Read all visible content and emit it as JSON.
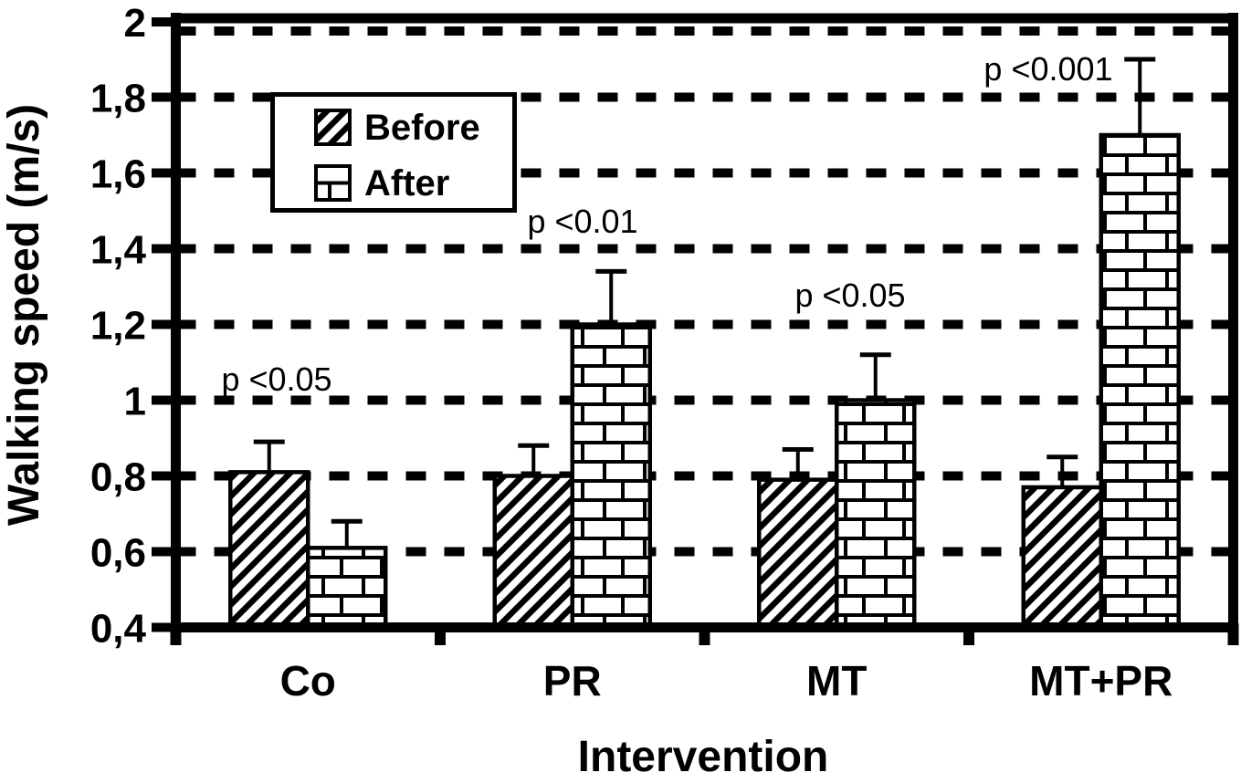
{
  "chart_data": {
    "type": "bar",
    "title": "",
    "xlabel": "Intervention",
    "ylabel": "Walking speed (m/s)",
    "categories": [
      "Co",
      "PR",
      "MT",
      "MT+PR"
    ],
    "series": [
      {
        "name": "Before",
        "pattern": "diagonal-hatch",
        "values": [
          0.81,
          0.8,
          0.79,
          0.77
        ],
        "error_plus": [
          0.08,
          0.08,
          0.08,
          0.08
        ]
      },
      {
        "name": "After",
        "pattern": "brick",
        "values": [
          0.61,
          1.2,
          1.0,
          1.7
        ],
        "error_plus": [
          0.07,
          0.14,
          0.12,
          0.2
        ]
      }
    ],
    "annotations": [
      {
        "text": "p <0.05",
        "category": "Co",
        "cx": 303,
        "baseline_y": 428
      },
      {
        "text": "p <0.01",
        "category": "PR",
        "cx": 638,
        "baseline_y": 255
      },
      {
        "text": "p <0.05",
        "category": "MT",
        "cx": 931,
        "baseline_y": 336
      },
      {
        "text": "p <0.001",
        "category": "MT+PR",
        "cx": 1148,
        "baseline_y": 88
      }
    ],
    "ylim": [
      0.4,
      2.0
    ],
    "ytick_step": 0.2,
    "ytick_labels": [
      "0,4",
      "0,6",
      "0,8",
      "1",
      "1,2",
      "1,4",
      "1,6",
      "1,8",
      "2"
    ],
    "grid": "dashed-horizontal",
    "legend_position": "upper-left-inside",
    "error_bars": "plus-only"
  },
  "colors": {
    "ink": "#000000",
    "background": "#ffffff"
  }
}
